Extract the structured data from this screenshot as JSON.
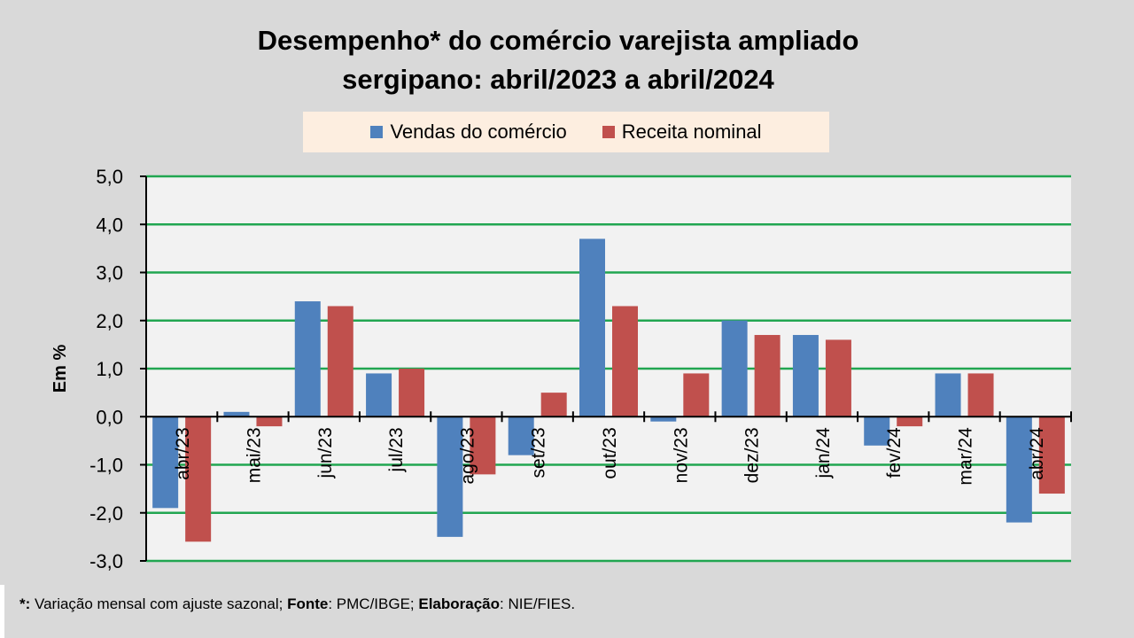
{
  "chart_data": {
    "type": "bar",
    "title_line1": "Desempenho* do comércio varejista ampliado",
    "title_line2": "sergipano: abril/2023 a abril/2024",
    "ylabel": "Em %",
    "xlabel": "",
    "ylim": [
      -3.0,
      5.0
    ],
    "yticks": [
      5.0,
      4.0,
      3.0,
      2.0,
      1.0,
      0.0,
      -1.0,
      -2.0,
      -3.0
    ],
    "ytick_labels": [
      "5,0",
      "4,0",
      "3,0",
      "2,0",
      "1,0",
      "0,0",
      "-1,0",
      "-2,0",
      "-3,0"
    ],
    "grid": true,
    "legend_position": "top-center",
    "categories": [
      "abr/23",
      "mai/23",
      "jun/23",
      "jul/23",
      "ago/23",
      "set/23",
      "out/23",
      "nov/23",
      "dez/23",
      "jan/24",
      "fev/24",
      "mar/24",
      "abr/24"
    ],
    "series": [
      {
        "name": "Vendas do comércio",
        "color": "#4f81bd",
        "values": [
          -1.9,
          0.1,
          2.4,
          0.9,
          -2.5,
          -0.8,
          3.7,
          -0.1,
          2.0,
          1.7,
          -0.6,
          0.9,
          -2.2
        ]
      },
      {
        "name": "Receita nominal",
        "color": "#c0504d",
        "values": [
          -2.6,
          -0.2,
          2.3,
          1.0,
          -1.2,
          0.5,
          2.3,
          0.9,
          1.7,
          1.6,
          -0.2,
          0.9,
          -1.6
        ]
      }
    ]
  },
  "colors": {
    "grid": "#21a651",
    "plot_bg": "#f2f2f2",
    "page_bg": "#d9d9d9",
    "legend_bg": "#fdeee0"
  },
  "footnote": {
    "star": "*:",
    "text1": " Variação mensal com ajuste sazonal; ",
    "fonte_label": "Fonte",
    "text2": ": PMC/IBGE; ",
    "elab_label": "Elaboração",
    "text3": ": NIE/FIES."
  }
}
